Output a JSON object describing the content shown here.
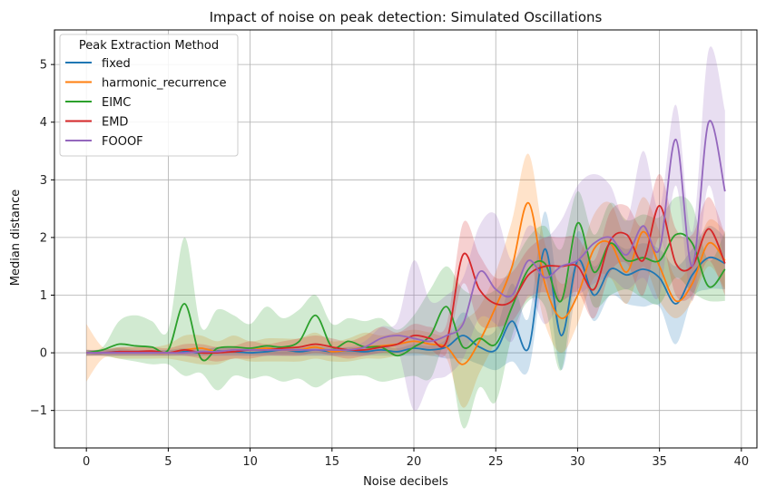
{
  "chart_data": {
    "type": "line",
    "title": "Impact of noise on peak detection: Simulated Oscillations",
    "xlabel": "Noise decibels",
    "ylabel": "Median distance",
    "xlim": [
      -1.95,
      40.95
    ],
    "ylim": [
      -1.65,
      5.6
    ],
    "xticks": [
      0,
      5,
      10,
      15,
      20,
      25,
      30,
      35,
      40
    ],
    "yticks": [
      -1,
      0,
      1,
      2,
      3,
      4,
      5
    ],
    "grid": true,
    "legend": {
      "title": "Peak Extraction Method",
      "position": "top-left"
    },
    "x": [
      0,
      1,
      2,
      3,
      4,
      5,
      6,
      7,
      8,
      9,
      10,
      11,
      12,
      13,
      14,
      15,
      16,
      17,
      18,
      19,
      20,
      21,
      22,
      23,
      24,
      25,
      26,
      27,
      28,
      29,
      30,
      31,
      32,
      33,
      34,
      35,
      36,
      37,
      38,
      39
    ],
    "series": [
      {
        "name": "fixed",
        "color": "#1f77b4",
        "values": [
          0.0,
          0.0,
          0.02,
          0.0,
          0.01,
          0.0,
          0.02,
          0.0,
          0.03,
          0.02,
          0.0,
          0.02,
          0.05,
          0.02,
          0.05,
          0.02,
          0.04,
          0.02,
          0.05,
          0.02,
          0.08,
          0.05,
          0.1,
          0.3,
          0.1,
          0.05,
          0.55,
          0.08,
          1.8,
          0.3,
          1.6,
          1.0,
          1.45,
          1.35,
          1.45,
          1.3,
          0.85,
          1.35,
          1.65,
          1.55
        ],
        "lower": [
          -0.05,
          -0.05,
          -0.05,
          -0.05,
          -0.05,
          -0.05,
          -0.05,
          -0.05,
          -0.05,
          -0.05,
          -0.05,
          -0.05,
          -0.05,
          -0.05,
          -0.05,
          -0.05,
          -0.05,
          -0.05,
          -0.05,
          -0.05,
          -0.05,
          -0.05,
          -0.1,
          -0.1,
          -0.2,
          -0.3,
          -0.15,
          -0.3,
          1.3,
          -0.3,
          1.1,
          0.55,
          1.0,
          0.85,
          0.8,
          0.8,
          0.15,
          0.95,
          1.1,
          1.1
        ],
        "upper": [
          0.05,
          0.05,
          0.08,
          0.05,
          0.05,
          0.05,
          0.08,
          0.05,
          0.1,
          0.08,
          0.05,
          0.08,
          0.12,
          0.08,
          0.12,
          0.08,
          0.1,
          0.08,
          0.12,
          0.08,
          0.15,
          0.12,
          0.25,
          0.7,
          0.35,
          0.4,
          1.2,
          0.6,
          2.45,
          0.9,
          2.1,
          1.5,
          1.9,
          1.8,
          1.9,
          1.8,
          1.5,
          1.8,
          2.2,
          2.0
        ]
      },
      {
        "name": "harmonic_recurrence",
        "color": "#ff7f0e",
        "values": [
          0.0,
          0.0,
          0.0,
          0.0,
          0.0,
          0.0,
          0.05,
          0.08,
          0.02,
          0.05,
          0.05,
          0.08,
          0.05,
          0.05,
          0.1,
          0.02,
          0.05,
          0.1,
          0.12,
          0.15,
          0.2,
          0.15,
          0.1,
          -0.2,
          0.2,
          0.8,
          1.5,
          2.6,
          1.2,
          0.6,
          1.0,
          1.8,
          1.9,
          1.4,
          2.1,
          1.5,
          0.9,
          1.2,
          1.9,
          1.6
        ],
        "lower": [
          -0.5,
          -0.1,
          -0.1,
          -0.1,
          -0.1,
          -0.1,
          -0.15,
          -0.2,
          -0.2,
          -0.1,
          -0.15,
          -0.15,
          -0.15,
          -0.15,
          -0.1,
          -0.15,
          -0.15,
          -0.1,
          -0.1,
          -0.05,
          0.0,
          -0.05,
          -0.1,
          -0.95,
          -0.35,
          0.2,
          0.8,
          1.6,
          0.5,
          0.0,
          0.5,
          1.3,
          1.3,
          0.85,
          1.5,
          0.9,
          0.6,
          0.9,
          1.5,
          1.1
        ],
        "upper": [
          0.5,
          0.1,
          0.1,
          0.1,
          0.1,
          0.15,
          0.3,
          0.3,
          0.2,
          0.3,
          0.2,
          0.25,
          0.25,
          0.25,
          0.35,
          0.2,
          0.25,
          0.35,
          0.3,
          0.35,
          0.4,
          0.35,
          0.3,
          0.55,
          0.8,
          1.4,
          2.3,
          3.45,
          1.9,
          1.2,
          1.6,
          2.4,
          2.6,
          2.0,
          2.7,
          2.1,
          1.3,
          1.6,
          2.3,
          2.1
        ]
      },
      {
        "name": "EIMC",
        "color": "#2ca02c",
        "values": [
          0.0,
          0.05,
          0.15,
          0.12,
          0.1,
          0.05,
          0.85,
          -0.1,
          0.08,
          0.1,
          0.08,
          0.12,
          0.1,
          0.2,
          0.65,
          0.1,
          0.2,
          0.1,
          0.1,
          -0.05,
          0.1,
          0.3,
          0.8,
          0.1,
          0.25,
          0.15,
          0.8,
          1.45,
          1.55,
          0.9,
          2.25,
          1.4,
          1.9,
          1.6,
          1.65,
          1.6,
          2.05,
          1.9,
          1.15,
          1.45
        ],
        "lower": [
          -0.05,
          -0.05,
          -0.1,
          -0.15,
          -0.2,
          -0.2,
          -0.4,
          -0.35,
          -0.65,
          -0.4,
          -0.45,
          -0.4,
          -0.5,
          -0.45,
          -0.6,
          -0.45,
          -0.4,
          -0.4,
          -0.5,
          -0.45,
          -0.4,
          -0.45,
          0.1,
          -1.3,
          -0.6,
          -0.85,
          0.3,
          0.9,
          0.8,
          -0.3,
          1.5,
          0.8,
          1.0,
          1.1,
          0.95,
          0.85,
          1.3,
          1.05,
          0.9,
          0.9
        ],
        "upper": [
          0.05,
          0.1,
          0.55,
          0.65,
          0.55,
          0.4,
          2.0,
          0.45,
          0.75,
          0.65,
          0.5,
          0.8,
          0.6,
          0.75,
          1.0,
          0.5,
          0.6,
          0.55,
          0.6,
          0.4,
          0.65,
          1.1,
          1.5,
          1.1,
          1.0,
          1.1,
          1.5,
          2.0,
          2.2,
          1.8,
          2.8,
          2.05,
          2.6,
          2.3,
          2.4,
          2.35,
          2.7,
          2.55,
          1.6,
          2.1
        ]
      },
      {
        "name": "EMD",
        "color": "#d62728",
        "values": [
          0.0,
          0.0,
          0.02,
          0.02,
          0.03,
          0.0,
          0.05,
          0.0,
          0.0,
          0.02,
          0.05,
          0.05,
          0.08,
          0.1,
          0.15,
          0.1,
          0.05,
          0.05,
          0.1,
          0.15,
          0.3,
          0.25,
          0.2,
          1.7,
          1.1,
          0.85,
          0.9,
          1.35,
          1.5,
          1.5,
          1.5,
          1.1,
          1.95,
          2.05,
          1.6,
          2.55,
          1.55,
          1.5,
          2.15,
          1.55
        ],
        "lower": [
          -0.05,
          -0.05,
          -0.05,
          -0.05,
          -0.05,
          -0.05,
          -0.05,
          -0.1,
          -0.15,
          -0.1,
          -0.1,
          -0.05,
          -0.05,
          -0.05,
          0.0,
          -0.05,
          -0.1,
          -0.05,
          0.0,
          0.0,
          0.1,
          0.05,
          0.0,
          1.2,
          0.5,
          0.45,
          0.55,
          0.95,
          1.05,
          0.9,
          1.05,
          0.6,
          1.4,
          1.55,
          1.0,
          2.0,
          1.0,
          1.0,
          1.6,
          1.0
        ],
        "upper": [
          0.05,
          0.05,
          0.1,
          0.1,
          0.1,
          0.08,
          0.15,
          0.15,
          0.1,
          0.12,
          0.2,
          0.15,
          0.2,
          0.25,
          0.3,
          0.25,
          0.2,
          0.3,
          0.45,
          0.35,
          0.5,
          0.45,
          0.5,
          2.25,
          1.7,
          1.3,
          1.4,
          1.8,
          2.0,
          2.0,
          2.0,
          1.6,
          2.45,
          2.55,
          2.2,
          3.1,
          2.15,
          2.05,
          2.7,
          2.05
        ]
      },
      {
        "name": "FOOOF",
        "color": "#9467bd",
        "values": [
          0.0,
          0.0,
          0.0,
          0.0,
          0.0,
          0.0,
          0.0,
          0.02,
          0.02,
          0.05,
          0.05,
          0.05,
          0.05,
          0.05,
          0.05,
          0.05,
          0.05,
          0.1,
          0.25,
          0.3,
          0.25,
          0.2,
          0.3,
          0.5,
          1.4,
          1.1,
          1.0,
          1.6,
          1.3,
          1.5,
          1.6,
          1.9,
          2.0,
          1.7,
          2.2,
          1.8,
          3.7,
          1.5,
          4.0,
          2.8
        ],
        "lower": [
          -0.05,
          -0.05,
          -0.05,
          -0.05,
          -0.05,
          -0.05,
          -0.05,
          -0.05,
          -0.05,
          -0.05,
          -0.05,
          -0.05,
          -0.05,
          -0.05,
          -0.05,
          -0.05,
          -0.05,
          -0.05,
          0.0,
          0.05,
          -1.0,
          -0.5,
          -0.4,
          -0.1,
          0.6,
          0.5,
          0.2,
          1.0,
          0.5,
          0.9,
          1.0,
          1.2,
          1.3,
          1.1,
          1.3,
          1.0,
          2.9,
          0.9,
          2.9,
          1.4
        ],
        "upper": [
          0.05,
          0.05,
          0.05,
          0.05,
          0.05,
          0.05,
          0.05,
          0.08,
          0.08,
          0.1,
          0.1,
          0.1,
          0.1,
          0.1,
          0.1,
          0.1,
          0.1,
          0.2,
          0.45,
          0.55,
          1.6,
          0.9,
          1.0,
          1.3,
          2.2,
          2.4,
          1.6,
          2.2,
          2.0,
          2.3,
          2.9,
          3.1,
          2.9,
          2.3,
          3.5,
          2.5,
          4.3,
          2.1,
          5.25,
          4.2
        ]
      }
    ]
  }
}
